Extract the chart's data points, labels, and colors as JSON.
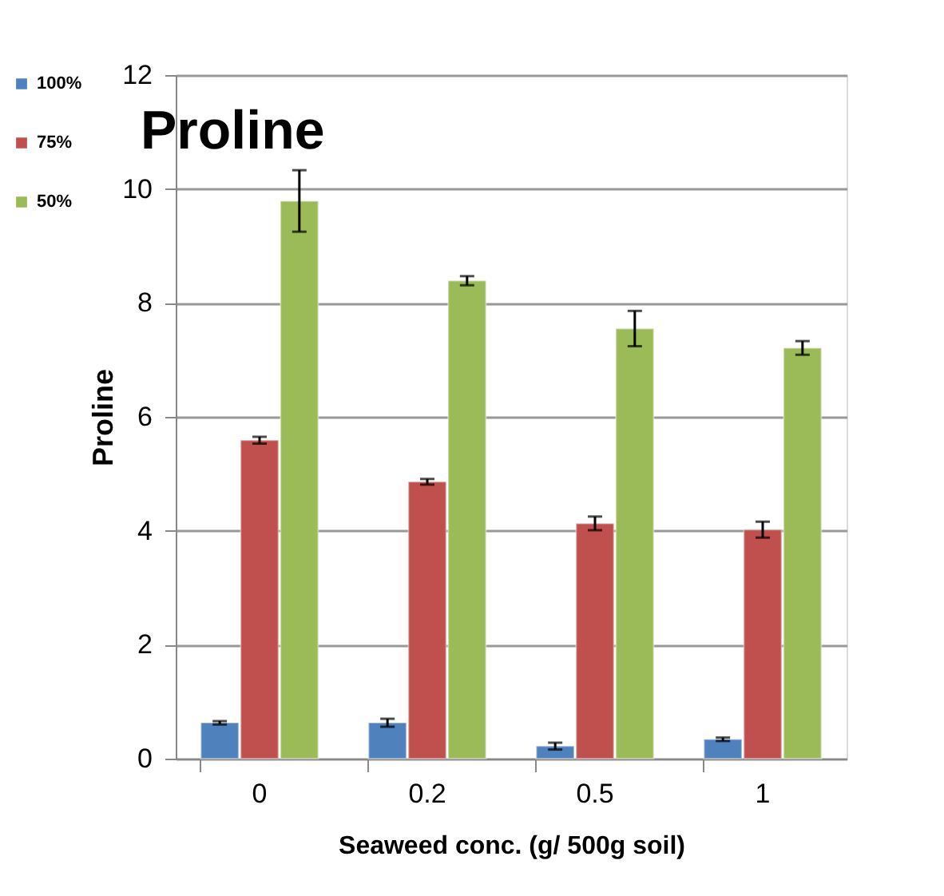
{
  "chart_data": {
    "type": "bar",
    "title": "Proline",
    "xlabel": "Seaweed conc. (g/ 500g soil)",
    "ylabel": "Proline",
    "categories": [
      "0",
      "0.2",
      "0.5",
      "1"
    ],
    "series": [
      {
        "name": "100%",
        "color": "#4f81bd",
        "values": [
          0.63,
          0.63,
          0.22,
          0.34
        ],
        "errors": [
          0.03,
          0.07,
          0.06,
          0.03
        ]
      },
      {
        "name": "75%",
        "color": "#c0504d",
        "values": [
          5.59,
          4.86,
          4.13,
          4.02
        ],
        "errors": [
          0.06,
          0.05,
          0.12,
          0.14
        ]
      },
      {
        "name": "50%",
        "color": "#9bbb59",
        "values": [
          9.79,
          8.39,
          7.55,
          7.21
        ],
        "errors": [
          0.54,
          0.08,
          0.31,
          0.12
        ]
      }
    ],
    "ylim": [
      0,
      12
    ],
    "yticks": [
      0,
      2,
      4,
      6,
      8,
      10,
      12
    ],
    "grid": "y",
    "legend": "left"
  }
}
